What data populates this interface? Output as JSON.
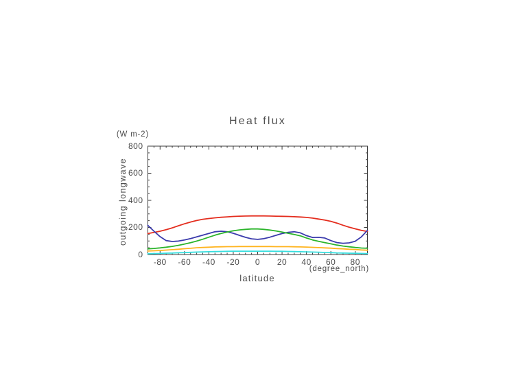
{
  "window": {
    "background_color": "#ffffff",
    "text_color": "#4c4c4c",
    "axis_color": "#3a3a3a"
  },
  "chart": {
    "title": "Heat flux",
    "y_unit_label": "(W m-2)",
    "y_axis_label": "outgoing longwave",
    "x_axis_label": "latitude",
    "x_unit_label": "(degree_north)"
  },
  "chart_data": {
    "type": "line",
    "title": "Heat flux",
    "xlabel": "latitude",
    "x_unit": "(degree_north)",
    "ylabel": "outgoing longwave",
    "y_unit": "(W m-2)",
    "xlim": [
      -90,
      90
    ],
    "ylim": [
      0,
      800
    ],
    "x_ticks": [
      -80,
      -60,
      -40,
      -20,
      0,
      20,
      40,
      60,
      80
    ],
    "y_ticks": [
      0,
      200,
      400,
      600,
      800
    ],
    "x_minor_step": 5,
    "y_minor_step": 50,
    "grid": false,
    "legend": "none",
    "x": [
      -90,
      -85,
      -80,
      -75,
      -70,
      -65,
      -60,
      -55,
      -50,
      -45,
      -40,
      -35,
      -30,
      -25,
      -20,
      -15,
      -10,
      -5,
      0,
      5,
      10,
      15,
      20,
      25,
      30,
      35,
      40,
      45,
      50,
      55,
      60,
      65,
      70,
      75,
      80,
      85,
      90
    ],
    "series": [
      {
        "name": "red-curve",
        "color": "#e42d1e",
        "width": 1.8,
        "values": [
          155,
          163,
          172,
          184,
          197,
          212,
          227,
          240,
          251,
          260,
          266,
          271,
          275,
          278,
          281,
          283,
          284,
          285,
          285,
          285,
          284,
          283,
          282,
          281,
          279,
          277,
          274,
          269,
          262,
          254,
          245,
          232,
          216,
          202,
          190,
          178,
          170
        ]
      },
      {
        "name": "dark-blue-curve",
        "color": "#3a3aac",
        "width": 1.8,
        "values": [
          215,
          172,
          132,
          103,
          96,
          99,
          108,
          118,
          130,
          143,
          156,
          168,
          172,
          168,
          157,
          142,
          127,
          116,
          112,
          117,
          128,
          142,
          155,
          164,
          168,
          160,
          140,
          126,
          127,
          122,
          103,
          88,
          83,
          86,
          98,
          130,
          178
        ]
      },
      {
        "name": "green-curve",
        "color": "#2bb42b",
        "width": 1.8,
        "values": [
          42,
          45,
          49,
          54,
          60,
          68,
          77,
          87,
          99,
          113,
          128,
          143,
          156,
          166,
          175,
          182,
          186,
          189,
          189,
          186,
          181,
          174,
          166,
          157,
          148,
          138,
          122,
          108,
          97,
          88,
          79,
          70,
          63,
          57,
          52,
          48,
          46
        ]
      },
      {
        "name": "orange-curve",
        "color": "#ffb41e",
        "width": 1.8,
        "values": [
          26,
          28,
          30,
          33,
          36,
          39,
          43,
          46,
          50,
          52,
          54,
          56,
          57,
          58,
          58,
          59,
          59,
          59,
          59,
          59,
          59,
          58,
          58,
          58,
          57,
          56,
          55,
          53,
          51,
          49,
          47,
          44,
          42,
          39,
          37,
          34,
          32
        ]
      },
      {
        "name": "cyan-curve",
        "color": "#35dede",
        "width": 1.8,
        "values": [
          6,
          7,
          8,
          10,
          11,
          13,
          14,
          16,
          18,
          19,
          21,
          22,
          23,
          24,
          25,
          25,
          25,
          25,
          25,
          25,
          25,
          24,
          24,
          23,
          22,
          21,
          20,
          18,
          17,
          15,
          14,
          12,
          11,
          10,
          9,
          8,
          7
        ]
      }
    ]
  }
}
